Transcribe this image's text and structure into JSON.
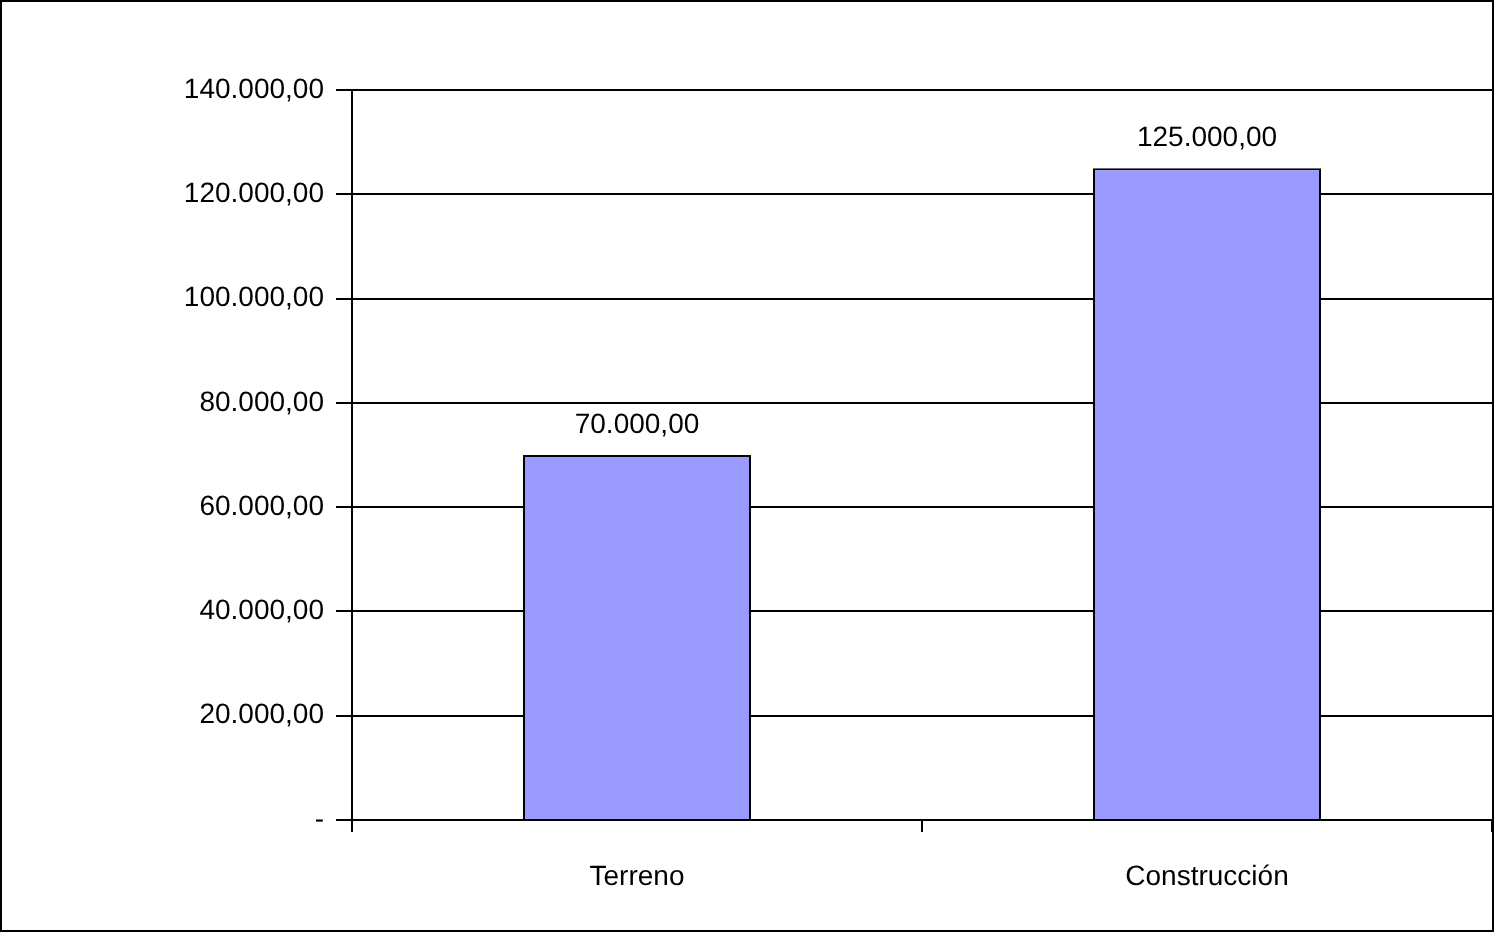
{
  "chart_data": {
    "type": "bar",
    "categories": [
      "Terreno",
      "Construcción"
    ],
    "values": [
      70000,
      125000
    ],
    "color": "#9999ff",
    "value_labels": [
      "70.000,00",
      "125.000,00"
    ],
    "ylim": [
      0,
      140000
    ],
    "yticks": [
      {
        "value": 0,
        "label": "-"
      },
      {
        "value": 20000,
        "label": "20.000,00"
      },
      {
        "value": 40000,
        "label": "40.000,00"
      },
      {
        "value": 60000,
        "label": "60.000,00"
      },
      {
        "value": 80000,
        "label": "80.000,00"
      },
      {
        "value": 100000,
        "label": "100.000,00"
      },
      {
        "value": 120000,
        "label": "120.000,00"
      },
      {
        "value": 140000,
        "label": "140.000,00"
      }
    ],
    "grid": "y",
    "legend": false
  }
}
